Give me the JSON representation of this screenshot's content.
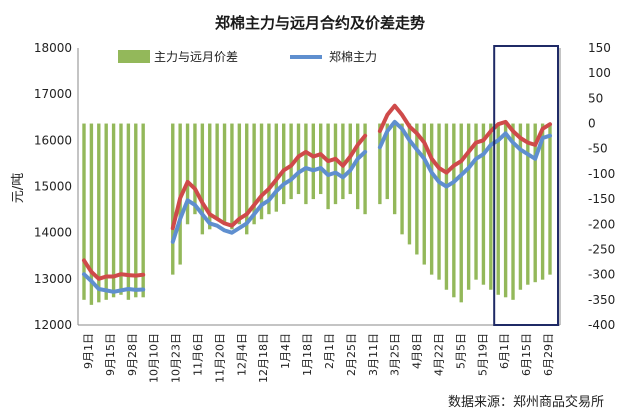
{
  "colors": {
    "spread_bar": "#93b85a",
    "main_line": "#5f8fcf",
    "far_line": "#cf4a4a",
    "highlight_box": "#1f2a66"
  },
  "chart_data": {
    "type": "bar+line",
    "title": "郑棉主力与远月合约及价差走势",
    "ylabel": "元/吨",
    "source": "数据来源：郑州商品交易所",
    "y_left": {
      "min": 12000,
      "max": 18000,
      "ticks": [
        12000,
        13000,
        14000,
        15000,
        16000,
        17000,
        18000
      ]
    },
    "y_right": {
      "min": -400,
      "max": 150,
      "ticks": [
        150,
        100,
        50,
        0,
        -50,
        -100,
        -150,
        -200,
        -250,
        -300,
        -350,
        -400
      ]
    },
    "x_tick_labels": [
      "9月1日",
      "9月15日",
      "9月28日",
      "10月10日",
      "10月23日",
      "11月6日",
      "11月20日",
      "12月4日",
      "12月18日",
      "1月4日",
      "1月18日",
      "2月1日",
      "2月25日",
      "3月11日",
      "3月25日",
      "4月8日",
      "4月22日",
      "5月5日",
      "5月19日",
      "6月1日",
      "6月15日",
      "6月29日"
    ],
    "legend": [
      {
        "name": "主力与远月价差",
        "kind": "bar"
      },
      {
        "name": "郑棉主力",
        "kind": "line"
      }
    ],
    "series": [
      {
        "name": "郑棉主力",
        "axis": "left",
        "values": [
          13100,
          12950,
          12780,
          12750,
          12720,
          12750,
          12780,
          12760,
          12770,
          null,
          null,
          null,
          13800,
          14300,
          14700,
          14600,
          14400,
          14200,
          14150,
          14050,
          14000,
          14100,
          14200,
          14400,
          14600,
          14700,
          14900,
          15050,
          15150,
          15300,
          15400,
          15350,
          15400,
          15250,
          15300,
          15200,
          15350,
          15600,
          15750,
          null,
          15850,
          16200,
          16400,
          16250,
          16000,
          15800,
          15600,
          15300,
          15100,
          15000,
          15100,
          15250,
          15400,
          15600,
          15700,
          15900,
          16000,
          16150,
          15950,
          15800,
          15700,
          15600,
          16050,
          16100
        ]
      },
      {
        "name": "远月合约",
        "axis": "left",
        "values": [
          13400,
          13150,
          13000,
          13050,
          13050,
          13100,
          13080,
          13070,
          13090,
          null,
          null,
          null,
          14100,
          14750,
          15100,
          14950,
          14650,
          14400,
          14300,
          14200,
          14150,
          14300,
          14400,
          14600,
          14800,
          14950,
          15150,
          15350,
          15450,
          15650,
          15750,
          15650,
          15700,
          15550,
          15600,
          15450,
          15650,
          15900,
          16100,
          null,
          16200,
          16550,
          16750,
          16550,
          16300,
          16150,
          15950,
          15600,
          15400,
          15300,
          15450,
          15550,
          15750,
          15950,
          16000,
          16200,
          16350,
          16400,
          16200,
          16050,
          15950,
          15900,
          16250,
          16350
        ]
      },
      {
        "name": "主力与远月价差",
        "axis": "right",
        "values": [
          -350,
          -360,
          -355,
          -350,
          -345,
          -340,
          -350,
          -345,
          -345,
          null,
          null,
          null,
          -300,
          -280,
          -200,
          -180,
          -220,
          -210,
          -190,
          -200,
          -210,
          -200,
          -220,
          -200,
          -190,
          -180,
          -175,
          -160,
          -150,
          -140,
          -160,
          -150,
          -140,
          -170,
          -160,
          -150,
          -140,
          -170,
          -180,
          null,
          -160,
          -150,
          -180,
          -220,
          -240,
          -260,
          -280,
          -300,
          -310,
          -330,
          -345,
          -355,
          -330,
          -310,
          -320,
          -330,
          -340,
          -345,
          -350,
          -330,
          -320,
          -315,
          -310,
          -300
        ]
      }
    ],
    "annotations": [
      {
        "kind": "rectangle",
        "x_range": [
          "6月1日",
          "6月29日"
        ],
        "y_right_range": [
          -400,
          150
        ]
      }
    ],
    "grid": false,
    "legend_position": "top-left"
  }
}
